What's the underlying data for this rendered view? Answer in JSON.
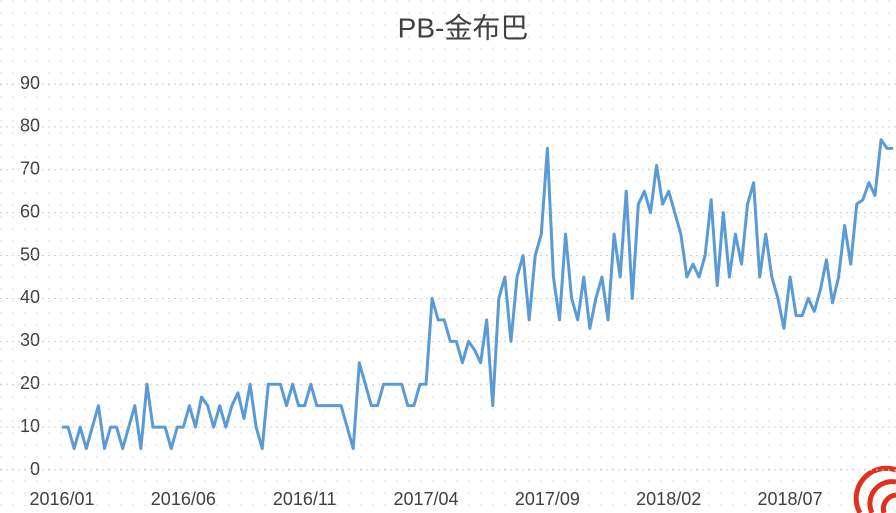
{
  "chart_data": {
    "type": "line",
    "title": "PB-金布巴",
    "categories": [
      "2016/01",
      null,
      null,
      null,
      null,
      null,
      null,
      null,
      null,
      null,
      null,
      null,
      null,
      null,
      null,
      null,
      null,
      null,
      null,
      null,
      "2016/06",
      null,
      null,
      null,
      null,
      null,
      null,
      null,
      null,
      null,
      null,
      null,
      null,
      null,
      null,
      null,
      null,
      null,
      null,
      null,
      "2016/11",
      null,
      null,
      null,
      null,
      null,
      null,
      null,
      null,
      null,
      null,
      null,
      null,
      null,
      null,
      null,
      null,
      null,
      null,
      null,
      "2017/04",
      null,
      null,
      null,
      null,
      null,
      null,
      null,
      null,
      null,
      null,
      null,
      null,
      null,
      null,
      null,
      null,
      null,
      null,
      null,
      "2017/09",
      null,
      null,
      null,
      null,
      null,
      null,
      null,
      null,
      null,
      null,
      null,
      null,
      null,
      null,
      null,
      null,
      null,
      null,
      null,
      "2018/02",
      null,
      null,
      null,
      null,
      null,
      null,
      null,
      null,
      null,
      null,
      null,
      null,
      null,
      null,
      null,
      null,
      null,
      null,
      null,
      "2018/07",
      null,
      null,
      null,
      null,
      null,
      null,
      null,
      null,
      null,
      null,
      null,
      null,
      null,
      null,
      null,
      null,
      null
    ],
    "series": [
      {
        "name": "PB",
        "color": "#5b9bd5",
        "values": [
          10,
          10,
          5,
          10,
          5,
          10,
          15,
          5,
          10,
          10,
          5,
          10,
          15,
          5,
          20,
          10,
          10,
          10,
          5,
          10,
          10,
          15,
          10,
          17,
          15,
          10,
          15,
          10,
          15,
          18,
          12,
          20,
          10,
          5,
          20,
          20,
          20,
          15,
          20,
          15,
          15,
          20,
          15,
          15,
          15,
          15,
          15,
          10,
          5,
          25,
          20,
          15,
          15,
          20,
          20,
          20,
          20,
          15,
          15,
          20,
          20,
          40,
          35,
          35,
          30,
          30,
          25,
          30,
          28,
          25,
          35,
          15,
          40,
          45,
          30,
          45,
          50,
          35,
          50,
          55,
          75,
          45,
          35,
          55,
          40,
          35,
          45,
          33,
          40,
          45,
          35,
          55,
          45,
          65,
          40,
          62,
          65,
          60,
          71,
          62,
          65,
          60,
          55,
          45,
          48,
          45,
          50,
          63,
          43,
          60,
          45,
          55,
          48,
          62,
          67,
          45,
          55,
          45,
          40,
          33,
          45,
          36,
          36,
          40,
          37,
          42,
          49,
          39,
          45,
          57,
          48,
          62,
          63,
          67,
          64,
          77,
          75,
          75
        ]
      }
    ],
    "ylim": [
      0,
      90
    ],
    "yticks": [
      0,
      10,
      20,
      30,
      40,
      50,
      60,
      70,
      80,
      90
    ],
    "grid": true
  }
}
